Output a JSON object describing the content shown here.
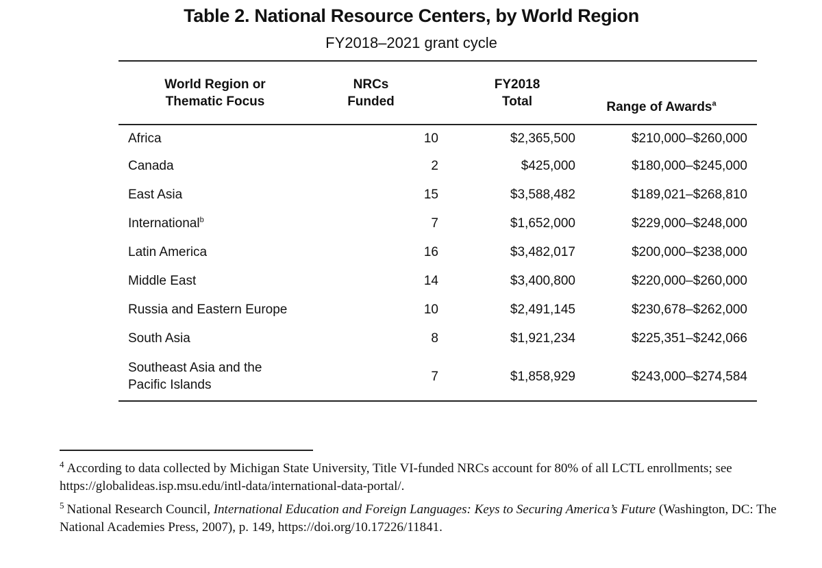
{
  "title": "Table 2. National Resource Centers, by World Region",
  "subtitle": "FY2018–2021 grant cycle",
  "headers": {
    "region_line1": "World Region or",
    "region_line2": "Thematic Focus",
    "nrcs_line1": "NRCs",
    "nrcs_line2": "Funded",
    "total_line1": "FY2018",
    "total_line2": "Total",
    "range": "Range of Awards",
    "range_sup": "a"
  },
  "rows": [
    {
      "region": "Africa",
      "nrcs": "10",
      "total": "$2,365,500",
      "range": "$210,000–$260,000"
    },
    {
      "region": "Canada",
      "nrcs": "2",
      "total": "$425,000",
      "range": "$180,000–$245,000"
    },
    {
      "region": "East Asia",
      "nrcs": "15",
      "total": "$3,588,482",
      "range": "$189,021–$268,810"
    },
    {
      "region": "International",
      "region_sup": "b",
      "nrcs": "7",
      "total": "$1,652,000",
      "range": "$229,000–$248,000"
    },
    {
      "region": "Latin America",
      "nrcs": "16",
      "total": "$3,482,017",
      "range": "$200,000–$238,000"
    },
    {
      "region": "Middle East",
      "nrcs": "14",
      "total": "$3,400,800",
      "range": "$220,000–$260,000"
    },
    {
      "region": "Russia and Eastern Europe",
      "nrcs": "10",
      "total": "$2,491,145",
      "range": "$230,678–$262,000"
    },
    {
      "region": "South Asia",
      "nrcs": "8",
      "total": "$1,921,234",
      "range": "$225,351–$242,066"
    },
    {
      "region_line1": "Southeast Asia and the",
      "region_line2": "Pacific Islands",
      "nrcs": "7",
      "total": "$1,858,929",
      "range": "$243,000–$274,584"
    }
  ],
  "footnotes": [
    {
      "mark": "4",
      "text": "According to data collected by Michigan State University, Title VI-funded NRCs account for 80% of all LCTL enrollments; see https://globalideas.isp.msu.edu/intl-data/international-data-portal/."
    },
    {
      "mark": "5",
      "text_before": "National Research Council, ",
      "italic": "International Education and Foreign Languages: Keys to Securing America’s Future",
      "text_after": " (Washington, DC: The National Academies Press, 2007), p. 149, https://doi.org/10.17226/11841."
    }
  ]
}
